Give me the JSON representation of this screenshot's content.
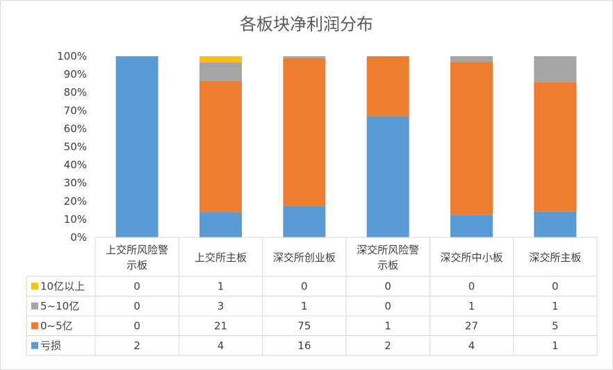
{
  "chart_data": {
    "type": "bar",
    "stacked": "percent",
    "title": "各板块净利润分布",
    "categories": [
      "上交所风险警示板",
      "上交所主板",
      "深交所创业板",
      "深交所风险警示板",
      "深交所中小板",
      "深交所主板"
    ],
    "category_lines": [
      [
        "上交所风险警",
        "示板"
      ],
      [
        "上交所主板"
      ],
      [
        "深交所创业板"
      ],
      [
        "深交所风险警",
        "示板"
      ],
      [
        "深交所中小板"
      ],
      [
        "深交所主板"
      ]
    ],
    "series": [
      {
        "name": "亏损",
        "values": [
          2,
          4,
          16,
          2,
          4,
          1
        ],
        "color": "#5b9bd5"
      },
      {
        "name": "0~5亿",
        "values": [
          0,
          21,
          75,
          1,
          27,
          5
        ],
        "color": "#ed7d31"
      },
      {
        "name": "5~10亿",
        "values": [
          0,
          3,
          1,
          0,
          1,
          1
        ],
        "color": "#a5a5a5"
      },
      {
        "name": "10亿以上",
        "values": [
          0,
          1,
          0,
          0,
          0,
          0
        ],
        "color": "#ffc000"
      }
    ],
    "ylim": [
      0,
      100
    ],
    "yticks": [
      "0%",
      "10%",
      "20%",
      "30%",
      "40%",
      "50%",
      "60%",
      "70%",
      "80%",
      "90%",
      "100%"
    ],
    "legend": "data-table",
    "grid": false
  }
}
